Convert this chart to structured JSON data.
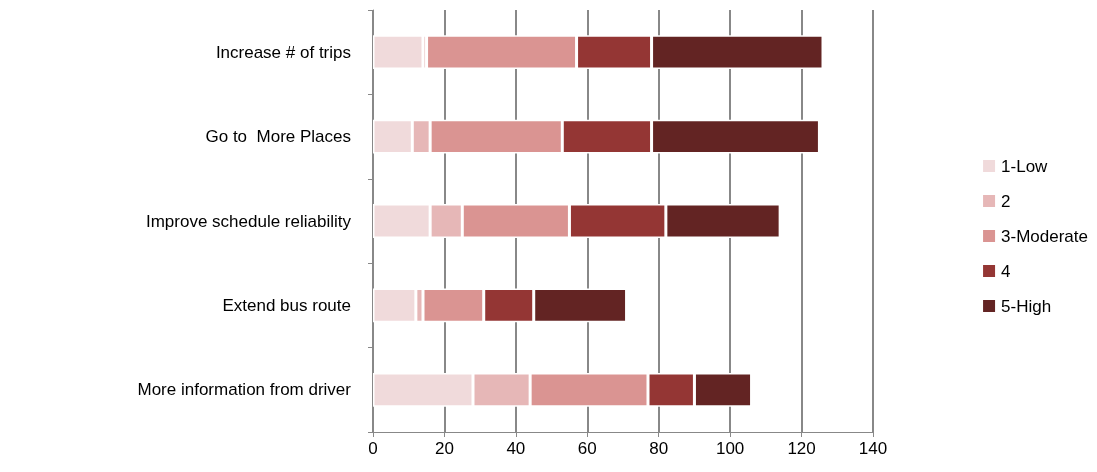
{
  "chart_data": {
    "type": "bar",
    "orientation": "horizontal",
    "stacked": true,
    "categories": [
      "Increase # of trips",
      "Go to  More Places",
      "Improve schedule reliability",
      "Extend bus route",
      "More information from driver"
    ],
    "series": [
      {
        "name": "1-Low",
        "color": "#f0dadb",
        "values": [
          14,
          11,
          16,
          12,
          28
        ]
      },
      {
        "name": "2",
        "color": "#e6b7b7",
        "values": [
          1,
          5,
          9,
          2,
          16
        ]
      },
      {
        "name": "3-Moderate",
        "color": "#da9492",
        "values": [
          42,
          37,
          30,
          17,
          33
        ]
      },
      {
        "name": "4",
        "color": "#943634",
        "values": [
          21,
          25,
          27,
          14,
          13
        ]
      },
      {
        "name": "5-High",
        "color": "#632423",
        "values": [
          48,
          47,
          32,
          26,
          16
        ]
      }
    ],
    "xlim": [
      0,
      140
    ],
    "xticks": [
      0,
      20,
      40,
      60,
      80,
      100,
      120,
      140
    ],
    "grid": "x",
    "legend": "right"
  }
}
